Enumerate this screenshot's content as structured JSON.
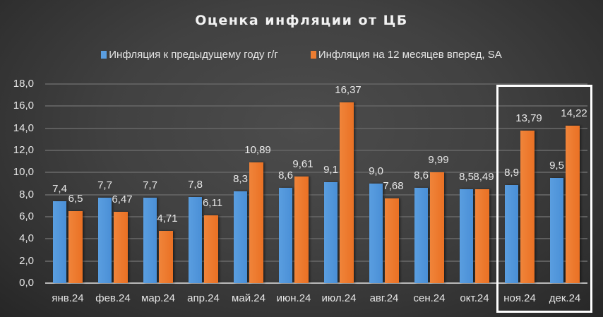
{
  "chart_data": {
    "type": "bar",
    "title": "Оценка инфляции от ЦБ",
    "categories": [
      "янв.24",
      "фев.24",
      "мар.24",
      "апр.24",
      "май.24",
      "июн.24",
      "июл.24",
      "авг.24",
      "сен.24",
      "окт.24",
      "ноя.24",
      "дек.24"
    ],
    "series": [
      {
        "name": "Инфляция к предыдущему году г/г",
        "color": "#5a9ee0",
        "values": [
          7.4,
          7.7,
          7.7,
          7.8,
          8.3,
          8.6,
          9.1,
          9.0,
          8.6,
          8.5,
          8.9,
          9.5
        ],
        "labels": [
          "7,4",
          "7,7",
          "7,7",
          "7,8",
          "8,3",
          "8,6",
          "9,1",
          "9,0",
          "8,6",
          "8,5",
          "8,9",
          "9,5"
        ]
      },
      {
        "name": "Инфляция на 12 месяцев вперед, SA",
        "color": "#ed7d31",
        "values": [
          6.5,
          6.47,
          4.71,
          6.11,
          10.89,
          9.61,
          16.37,
          7.68,
          9.99,
          8.49,
          13.79,
          14.22
        ],
        "labels": [
          "6,5",
          "6,47",
          "4,71",
          "6,11",
          "10,89",
          "9,61",
          "16,37",
          "7,68",
          "9,99",
          "8,49",
          "13,79",
          "14,22"
        ]
      }
    ],
    "xlabel": "",
    "ylabel": "",
    "ylim": [
      0,
      18
    ],
    "yticks": [
      "0,0",
      "2,0",
      "4,0",
      "6,0",
      "8,0",
      "10,0",
      "12,0",
      "14,0",
      "16,0",
      "18,0"
    ],
    "grid": true,
    "legend_position": "top",
    "annotations": [
      {
        "type": "highlight-box",
        "covers": [
          "ноя.24",
          "дек.24"
        ],
        "color": "#ffffff"
      }
    ]
  },
  "title": "Оценка инфляции от ЦБ",
  "legend": {
    "items": [
      {
        "label": "Инфляция к предыдущему году г/г",
        "color": "#5a9ee0"
      },
      {
        "label": "Инфляция на 12 месяцев вперед, SA",
        "color": "#ed7d31"
      }
    ]
  }
}
